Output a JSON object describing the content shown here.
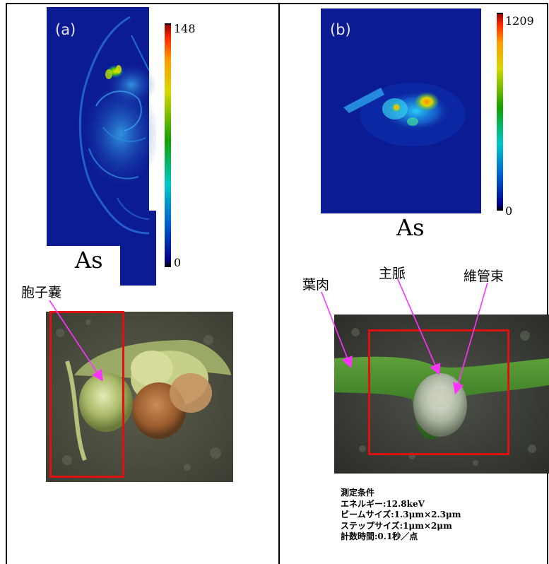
{
  "panel_a": {
    "label": "(a)",
    "colorbar_max": "148",
    "colorbar_min": "0",
    "element": "As",
    "annotation": "胞子嚢"
  },
  "panel_b": {
    "label": "(b)",
    "colorbar_max": "1209",
    "colorbar_min": "0",
    "element": "As",
    "annotations": {
      "mesophyll": "葉肉",
      "midrib": "主脈",
      "vascular_bundle": "維管束"
    }
  },
  "conditions": {
    "title": "測定条件",
    "energy": "エネルギー:12.8keV",
    "beam_size": "ビームサイズ:1.3μm×2.3μm",
    "step_size": "ステップサイズ:1μm×2μm",
    "count_time": "計数時間:0.1秒／点"
  },
  "colors": {
    "annotation_arrow": "#ff33ff",
    "highlight_box": "#e01010",
    "map_background": "#0a1a8c"
  }
}
